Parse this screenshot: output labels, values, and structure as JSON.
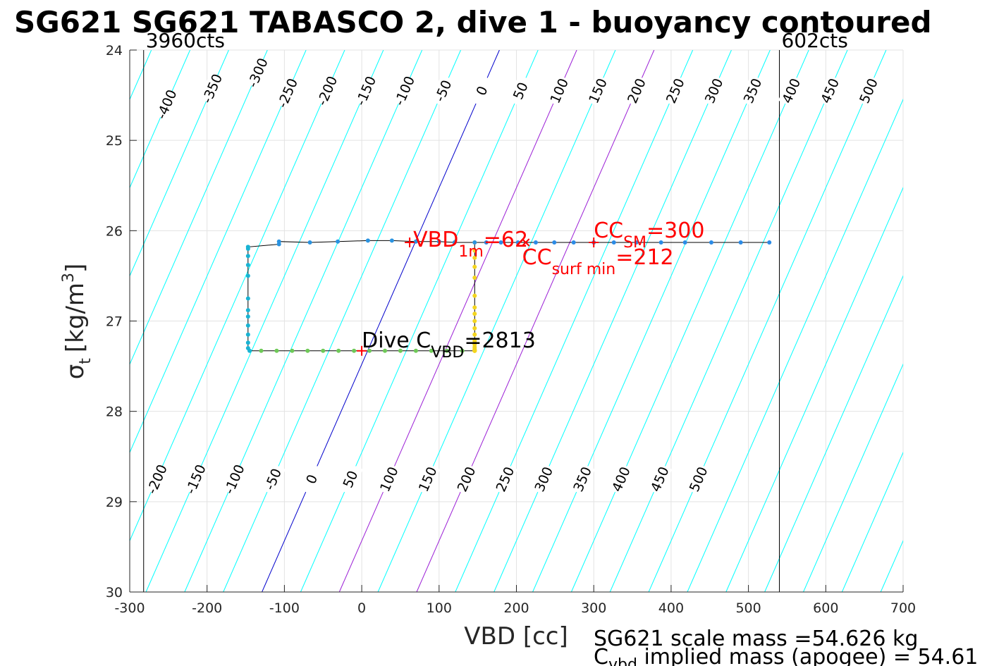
{
  "chart_data": {
    "type": "line",
    "title": "SG621 SG621 TABASCO 2, dive 1 - buoyancy contoured",
    "xlabel": "VBD [cc]",
    "ylabel_main": "σ",
    "ylabel_sub": "t",
    "ylabel_unit_pre": "[kg/m",
    "ylabel_unit_sup": "3",
    "ylabel_unit_post": "]",
    "xlim": [
      -300,
      700
    ],
    "ylim": [
      24,
      30
    ],
    "y_reversed": true,
    "grid": true,
    "xticks": [
      -300,
      -200,
      -100,
      0,
      100,
      200,
      300,
      400,
      500,
      600,
      700
    ],
    "yticks": [
      24,
      25,
      26,
      27,
      28,
      29,
      30
    ],
    "limit_lines": [
      {
        "x": -282,
        "label": "3960cts"
      },
      {
        "x": 540,
        "label": "602cts"
      }
    ],
    "contours": {
      "color": "#00ffff",
      "highlight_color_zero": "#0000cc",
      "highlight_color_sm": "#9b1fd6",
      "highlight_levels_sm": [
        100,
        200
      ],
      "levels": [
        -600,
        -550,
        -500,
        -450,
        -400,
        -350,
        -300,
        -250,
        -200,
        -150,
        -100,
        -50,
        0,
        50,
        100,
        150,
        200,
        250,
        300,
        350,
        400,
        450,
        500,
        550,
        600,
        650,
        700,
        750,
        800,
        850
      ],
      "x_at_sigma30_for_level0": -129,
      "x_at_sigma24_for_level0": 178,
      "top_labels": [
        -400,
        -350,
        -300,
        -250,
        -200,
        -150,
        -100,
        -50,
        0,
        50,
        100,
        150,
        200,
        250,
        300,
        350,
        400,
        450,
        500
      ],
      "bottom_labels": [
        -200,
        -150,
        -100,
        -50,
        0,
        50,
        100,
        150,
        200,
        250,
        300,
        350,
        400,
        450,
        500
      ]
    },
    "series": [
      {
        "line_color": "#000000",
        "x": [
          527,
          490,
          452,
          418,
          387,
          355,
          326,
          300,
          274,
          249,
          225,
          202,
          180,
          161,
          146,
          146,
          146,
          146,
          146,
          146,
          146,
          146,
          146,
          146,
          146,
          146,
          146,
          146,
          146,
          146,
          146,
          146,
          146,
          146,
          146,
          146,
          130,
          110,
          90,
          70,
          50,
          30,
          10,
          -10,
          -30,
          -50,
          -70,
          -90,
          -110,
          -130,
          -145,
          -147,
          -147,
          -147,
          -147,
          -147,
          -147,
          -147,
          -147,
          -147,
          -147,
          -147,
          -147,
          -147,
          -107,
          -107,
          -67,
          -31,
          8,
          39,
          70,
          100,
          120,
          146
        ],
        "y": [
          26.13,
          26.13,
          26.13,
          26.13,
          26.13,
          26.13,
          26.13,
          26.13,
          26.13,
          26.13,
          26.13,
          26.13,
          26.13,
          26.13,
          26.13,
          26.22,
          26.3,
          26.4,
          26.52,
          26.72,
          26.85,
          26.92,
          27.0,
          27.08,
          27.15,
          27.22,
          27.26,
          27.29,
          27.31,
          27.32,
          27.33,
          27.33,
          27.33,
          27.33,
          27.33,
          27.33,
          27.33,
          27.33,
          27.33,
          27.33,
          27.33,
          27.33,
          27.33,
          27.33,
          27.33,
          27.33,
          27.33,
          27.33,
          27.33,
          27.33,
          27.33,
          27.3,
          27.24,
          27.15,
          27.05,
          26.95,
          26.88,
          26.75,
          26.5,
          26.38,
          26.28,
          26.2,
          26.18,
          26.18,
          26.15,
          26.12,
          26.13,
          26.12,
          26.11,
          26.11,
          26.12,
          26.12,
          26.13,
          26.13
        ]
      }
    ],
    "points_color_scale": [
      "#2b7de9",
      "#1aa3d6",
      "#19b9c9",
      "#3fc37a",
      "#9bd048",
      "#e6d22b",
      "#f9e02a"
    ],
    "markers": [
      {
        "x": 62,
        "y": 26.13,
        "label_main": "VBD",
        "label_sub": "1m",
        "label_post": "=62",
        "color": "#ff0000"
      },
      {
        "x": 300,
        "y": 26.13,
        "label_main": "CC",
        "label_sub": "SM",
        "label_post": "=300",
        "color": "#ff0000"
      },
      {
        "x": 212,
        "y": 26.13,
        "label_main": "CC",
        "label_sub": "surf min",
        "label_post": "=212",
        "color": "#ff0000",
        "marker": "x"
      },
      {
        "x": 0,
        "y": 27.33,
        "label_main": "Dive C",
        "label_sub": "VBD",
        "label_post": "=2813",
        "color": "#000000",
        "marker_color": "#ff0000"
      }
    ]
  },
  "footer": {
    "line1": "SG621 scale mass =54.626 kg",
    "line2_pre": "C",
    "line2_sub": "vbd",
    "line2_post": " implied mass (apogee) = 54.61"
  }
}
